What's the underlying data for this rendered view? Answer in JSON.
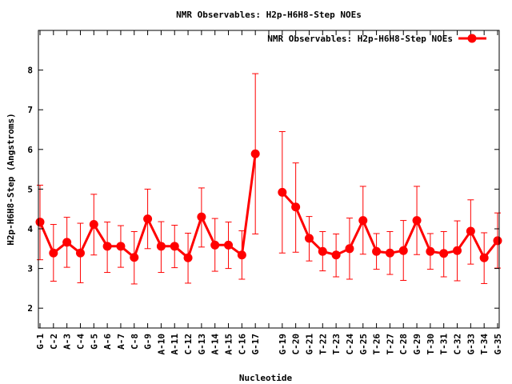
{
  "chart_data": {
    "type": "line",
    "title": "NMR Observables: H2p-H6H8-Step NOEs",
    "xlabel": "Nucleotide",
    "ylabel": "H2p-H6H8-Step (Angstroms)",
    "ylim": [
      1.5,
      9.0
    ],
    "yticks": [
      2,
      3,
      4,
      5,
      6,
      7,
      8
    ],
    "grid": false,
    "legend_position": "top-right",
    "colors": {
      "series": "#ff0000",
      "axis": "#000000"
    },
    "categories": [
      "G-1",
      "C-2",
      "A-3",
      "C-4",
      "G-5",
      "A-6",
      "A-7",
      "C-8",
      "G-9",
      "A-10",
      "A-11",
      "C-12",
      "G-13",
      "A-14",
      "A-15",
      "C-16",
      "G-17",
      "",
      "G-19",
      "C-20",
      "G-21",
      "T-22",
      "T-23",
      "C-24",
      "G-25",
      "T-26",
      "T-27",
      "C-28",
      "G-29",
      "T-30",
      "T-31",
      "C-32",
      "G-33",
      "T-34",
      "G-35"
    ],
    "series": [
      {
        "name": "NMR Observables: H2p-H6H8-Step NOEs",
        "values": [
          4.17,
          3.39,
          3.66,
          3.39,
          4.11,
          3.56,
          3.56,
          3.28,
          4.25,
          3.56,
          3.56,
          3.27,
          4.3,
          3.59,
          3.59,
          3.34,
          5.89,
          null,
          4.92,
          4.55,
          3.76,
          3.43,
          3.34,
          3.5,
          4.21,
          3.43,
          3.39,
          3.45,
          4.21,
          3.43,
          3.38,
          3.45,
          3.94,
          3.27,
          3.7
        ],
        "err_low": [
          3.22,
          2.68,
          3.03,
          2.64,
          3.34,
          2.9,
          3.03,
          2.61,
          3.5,
          2.9,
          3.02,
          2.63,
          3.54,
          2.93,
          3.0,
          2.73,
          3.87,
          null,
          3.39,
          3.41,
          3.19,
          2.94,
          2.79,
          2.73,
          3.36,
          2.98,
          2.85,
          2.7,
          3.35,
          2.98,
          2.79,
          2.69,
          3.11,
          2.62,
          3.01
        ],
        "err_high": [
          5.1,
          4.11,
          4.29,
          4.14,
          4.87,
          4.17,
          4.08,
          3.93,
          5.0,
          4.18,
          4.09,
          3.89,
          5.03,
          4.26,
          4.17,
          3.95,
          7.91,
          null,
          6.45,
          5.66,
          4.31,
          3.93,
          3.87,
          4.27,
          5.07,
          3.88,
          3.93,
          4.21,
          5.07,
          3.88,
          3.93,
          4.2,
          4.73,
          3.9,
          4.4
        ]
      }
    ]
  }
}
